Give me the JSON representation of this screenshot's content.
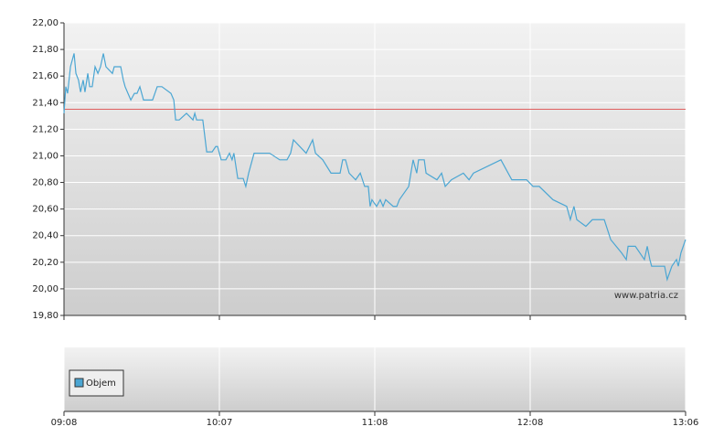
{
  "chart_data": {
    "type": "line",
    "x": [
      0,
      0.7,
      1.4,
      2.5,
      3.9,
      4.6,
      5.6,
      6.4,
      7.4,
      8.1,
      9.2,
      9.9,
      10.9,
      12,
      13.1,
      14.1,
      15.2,
      16.2,
      18.7,
      19.4,
      21.9,
      22.9,
      23.6,
      24.7,
      25.8,
      27.2,
      28.2,
      29.3,
      30.7,
      34.2,
      36,
      37.8,
      41.3,
      42.4,
      43.1,
      44.5,
      47.3,
      49.8,
      50.5,
      51.2,
      53.6,
      55.1,
      57.2,
      58.6,
      59.3,
      60.7,
      62.5,
      63.9,
      64.9,
      65.6,
      67.1,
      69.2,
      70.2,
      71.3,
      73.4,
      79.4,
      83.3,
      86.1,
      87.5,
      88.6,
      93.5,
      96,
      97.1,
      99.9,
      103.1,
      106.6,
      107.6,
      108.7,
      110.1,
      112.6,
      114.4,
      116.1,
      117.5,
      118.2,
      118.9,
      120.7,
      122.1,
      123.2,
      124.2,
      127.1,
      128.5,
      129.5,
      133.1,
      134.8,
      136.2,
      136.9,
      139.1,
      139.8,
      144,
      145.8,
      147.2,
      149.6,
      154.2,
      156.4,
      158.1,
      168.7,
      172.9,
      178.6,
      181.1,
      183.5,
      188.8,
      194.1,
      195.5,
      196.9,
      198,
      201.5,
      204,
      208.6,
      211.1,
      215.3,
      217.1,
      217.8,
      220.6,
      224.1,
      225.2,
      226.2,
      226.9,
      231.9,
      232.9,
      234.7,
      236.5,
      237.2,
      238.2,
      240
    ],
    "series": [
      {
        "color": "#4ba6d3",
        "values": [
          21.32,
          21.52,
          21.47,
          21.67,
          21.77,
          21.62,
          21.57,
          21.48,
          21.57,
          21.48,
          21.62,
          21.52,
          21.52,
          21.67,
          21.62,
          21.67,
          21.77,
          21.67,
          21.62,
          21.67,
          21.67,
          21.57,
          21.52,
          21.47,
          21.42,
          21.47,
          21.47,
          21.52,
          21.42,
          21.42,
          21.52,
          21.52,
          21.47,
          21.42,
          21.27,
          21.27,
          21.32,
          21.27,
          21.32,
          21.27,
          21.27,
          21.03,
          21.03,
          21.07,
          21.07,
          20.97,
          20.97,
          21.02,
          20.97,
          21.02,
          20.83,
          20.83,
          20.77,
          20.87,
          21.02,
          21.02,
          20.97,
          20.97,
          21.02,
          21.12,
          21.02,
          21.12,
          21.02,
          20.97,
          20.87,
          20.87,
          20.97,
          20.97,
          20.87,
          20.82,
          20.87,
          20.77,
          20.77,
          20.62,
          20.67,
          20.62,
          20.67,
          20.62,
          20.67,
          20.62,
          20.62,
          20.67,
          20.77,
          20.97,
          20.87,
          20.97,
          20.97,
          20.87,
          20.82,
          20.87,
          20.77,
          20.82,
          20.87,
          20.82,
          20.87,
          20.97,
          20.82,
          20.82,
          20.77,
          20.77,
          20.67,
          20.62,
          20.52,
          20.62,
          20.52,
          20.47,
          20.52,
          20.52,
          20.37,
          20.27,
          20.22,
          20.32,
          20.32,
          20.22,
          20.32,
          20.22,
          20.17,
          20.17,
          20.07,
          20.17,
          20.22,
          20.17,
          20.27,
          20.37
        ]
      }
    ],
    "reference_line": {
      "value": 21.35,
      "color": "#e06060"
    },
    "xlim": [
      0,
      240
    ],
    "xticks": [
      {
        "value": 0,
        "label": "09:08"
      },
      {
        "value": 60,
        "label": "10:07"
      },
      {
        "value": 120,
        "label": "11:08"
      },
      {
        "value": 180,
        "label": "12:08"
      },
      {
        "value": 240,
        "label": "13:06"
      }
    ],
    "ylim": [
      19.8,
      22.0
    ],
    "yticks": [
      {
        "value": 19.8,
        "label": "19,80"
      },
      {
        "value": 20.0,
        "label": "20,00"
      },
      {
        "value": 20.2,
        "label": "20,20"
      },
      {
        "value": 20.4,
        "label": "20,40"
      },
      {
        "value": 20.6,
        "label": "20,60"
      },
      {
        "value": 20.8,
        "label": "20,80"
      },
      {
        "value": 21.0,
        "label": "21,00"
      },
      {
        "value": 21.2,
        "label": "21,20"
      },
      {
        "value": 21.4,
        "label": "21,40"
      },
      {
        "value": 21.6,
        "label": "21,60"
      },
      {
        "value": 21.8,
        "label": "21,80"
      },
      {
        "value": 22.0,
        "label": "22,00"
      }
    ],
    "grid": true,
    "watermark": "www.patria.cz",
    "volume_legend": {
      "name": "Objem",
      "color": "#4ba6d3"
    }
  }
}
